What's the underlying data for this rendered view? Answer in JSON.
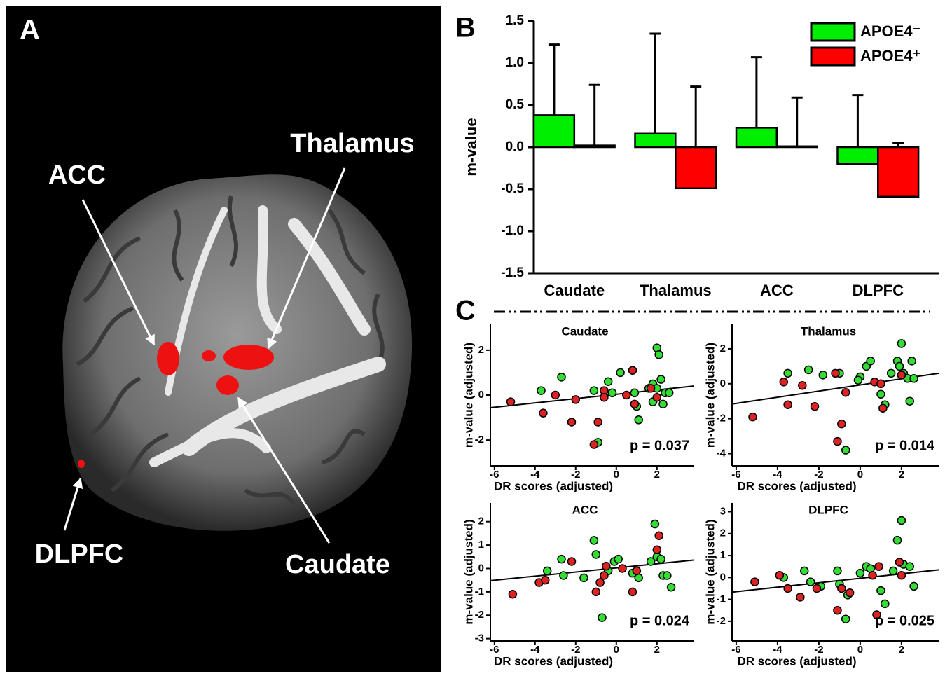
{
  "panels": {
    "a": "A",
    "b": "B",
    "c": "C"
  },
  "brain_labels": [
    "ACC",
    "Thalamus",
    "Caudate",
    "DLPFC"
  ],
  "chart_data": [
    {
      "type": "bar",
      "ylabel": "m-value",
      "categories": [
        "Caudate",
        "Thalamus",
        "ACC",
        "DLPFC"
      ],
      "series": [
        {
          "name": "APOE4⁻",
          "color": "#00ee00",
          "values": [
            0.38,
            0.16,
            0.23,
            -0.2
          ],
          "errors": [
            0.84,
            1.19,
            0.84,
            0.82
          ]
        },
        {
          "name": "APOE4⁺",
          "color": "#ff0000",
          "values": [
            0.02,
            -0.49,
            0.01,
            -0.59
          ],
          "errors": [
            0.72,
            1.21,
            0.58,
            0.64
          ]
        }
      ],
      "ylim": [
        -1.5,
        1.5
      ],
      "yticks": [
        -1.5,
        {
          "value": -1,
          "label": "-1.0"
        },
        -0.5,
        {
          "value": 0,
          "label": "0.0"
        },
        0.5,
        {
          "value": 1,
          "label": "1.0"
        },
        1.5
      ],
      "legend": "top-right"
    },
    {
      "type": "scatter",
      "title": "Caudate",
      "xlabel": "DR scores (adjusted)",
      "ylabel": "m-value (adjusted)",
      "annotation": "p = 0.037",
      "xlim": [
        -6.2,
        3.8
      ],
      "ylim": [
        -3.15,
        3.15
      ],
      "xticks": [
        -6,
        -4,
        -2,
        0,
        2
      ],
      "yticks": [
        -2,
        0,
        2
      ],
      "series": [
        {
          "color": "#33dd33",
          "x": [
            -3.7,
            -2.7,
            -1.1,
            -0.9,
            -0.4,
            0.2,
            1.0,
            1.1,
            1.6,
            1.8,
            2.0,
            2.1,
            2.2,
            2.3,
            2.4,
            2.6,
            0.9,
            -0.2,
            2.0,
            1.8
          ],
          "values": [
            0.2,
            0.8,
            0.2,
            -2.1,
            0.6,
            1.0,
            -0.5,
            -1.1,
            0.3,
            0.5,
            2.1,
            1.8,
            0.7,
            -0.4,
            0.1,
            0.1,
            0.1,
            0.1,
            0.3,
            -0.3
          ]
        },
        {
          "color": "#dd2222",
          "x": [
            -5.2,
            -3.6,
            -3.0,
            -2.2,
            -1.1,
            -0.9,
            -0.6,
            -0.6,
            0.8,
            0.9,
            1.7,
            0.5,
            -2.0,
            2.0
          ],
          "values": [
            -0.3,
            -0.8,
            0.0,
            -1.2,
            -2.2,
            -1.2,
            0.2,
            -0.1,
            1.1,
            -0.4,
            0.3,
            0.0,
            -0.2,
            -0.1
          ]
        }
      ],
      "fit": {
        "x": [
          -6.2,
          3.8
        ],
        "y": [
          -0.56,
          0.4
        ]
      }
    },
    {
      "type": "scatter",
      "title": "Thalamus",
      "xlabel": "DR scores (adjusted)",
      "ylabel": "m-value (adjusted)",
      "annotation": "p = 0.014",
      "xlim": [
        -6.2,
        3.8
      ],
      "ylim": [
        -4.7,
        3.4
      ],
      "xticks": [
        -6,
        -4,
        -2,
        0,
        2
      ],
      "yticks": [
        -4,
        -2,
        0,
        2
      ],
      "series": [
        {
          "color": "#33dd33",
          "x": [
            -3.5,
            -2.5,
            -1.8,
            -1.0,
            -0.7,
            0.0,
            0.3,
            0.5,
            1.0,
            1.2,
            1.8,
            1.9,
            2.0,
            2.1,
            2.3,
            2.5,
            2.4,
            -0.1,
            1.5,
            2.6
          ],
          "values": [
            0.6,
            0.8,
            0.5,
            0.6,
            -3.8,
            0.4,
            1.0,
            1.3,
            -0.6,
            -1.2,
            1.3,
            1.0,
            2.3,
            0.6,
            0.3,
            1.3,
            -1.0,
            0.2,
            0.6,
            0.3
          ]
        },
        {
          "color": "#dd2222",
          "x": [
            -5.2,
            -3.7,
            -3.5,
            -2.8,
            -2.2,
            -1.1,
            -0.9,
            -0.7,
            0.7,
            1.1,
            -1.2,
            1.0,
            2.0
          ],
          "values": [
            -1.9,
            0.1,
            -1.2,
            -0.1,
            -1.3,
            -3.3,
            -2.3,
            -0.5,
            0.1,
            -1.4,
            0.6,
            0.0,
            0.5
          ]
        }
      ],
      "fit": {
        "x": [
          -6.2,
          3.8
        ],
        "y": [
          -1.16,
          0.6
        ]
      }
    },
    {
      "type": "scatter",
      "title": "ACC",
      "xlabel": "DR scores (adjusted)",
      "ylabel": "m-value (adjusted)",
      "annotation": "p = 0.024",
      "xlim": [
        -6.2,
        3.8
      ],
      "ylim": [
        -3.1,
        2.8
      ],
      "xticks": [
        -6,
        -4,
        -2,
        0,
        2
      ],
      "yticks": [
        -3,
        -2,
        -1,
        0,
        1,
        2
      ],
      "series": [
        {
          "color": "#33dd33",
          "x": [
            -3.4,
            -2.7,
            -2.6,
            -1.1,
            -1.0,
            -0.7,
            -0.1,
            0.1,
            0.8,
            1.1,
            1.9,
            2.0,
            2.2,
            2.3,
            2.5,
            2.7,
            -1.6,
            -0.4,
            1.7
          ],
          "values": [
            -0.1,
            0.4,
            -0.3,
            1.2,
            0.6,
            -2.1,
            0.3,
            0.4,
            -0.2,
            -0.4,
            1.9,
            0.5,
            0.4,
            -0.3,
            -0.3,
            -0.8,
            -0.4,
            -0.1,
            0.3
          ]
        },
        {
          "color": "#dd2222",
          "x": [
            -5.1,
            -3.8,
            -3.5,
            -2.2,
            -1.0,
            -0.8,
            -0.5,
            0.8,
            1.0,
            2.1,
            2.0,
            0.3,
            -0.6
          ],
          "values": [
            -1.1,
            -0.6,
            -0.5,
            0.3,
            -1.0,
            -0.6,
            0.1,
            -1.0,
            -0.1,
            1.4,
            0.8,
            0.0,
            -0.3
          ]
        }
      ],
      "fit": {
        "x": [
          -6.2,
          3.8
        ],
        "y": [
          -0.52,
          0.36
        ]
      }
    },
    {
      "type": "scatter",
      "title": "DLPFC",
      "xlabel": "DR scores (adjusted)",
      "ylabel": "m-value (adjusted)",
      "annotation": "p = 0.025",
      "xlim": [
        -6.2,
        3.8
      ],
      "ylim": [
        -2.9,
        3.4
      ],
      "xticks": [
        -6,
        -4,
        -2,
        0,
        2
      ],
      "yticks": [
        -2,
        -1,
        0,
        1,
        2,
        3
      ],
      "series": [
        {
          "color": "#33dd33",
          "x": [
            -3.7,
            -2.7,
            -2.4,
            -1.9,
            -1.1,
            -1.0,
            -0.7,
            0.0,
            0.3,
            0.5,
            1.0,
            1.2,
            1.8,
            2.0,
            2.1,
            2.4,
            2.6,
            1.6,
            -0.6
          ],
          "values": [
            0.0,
            0.3,
            -0.2,
            -0.4,
            0.3,
            -0.3,
            -1.9,
            0.2,
            0.5,
            0.4,
            -0.6,
            -1.2,
            1.7,
            2.6,
            0.6,
            0.5,
            -0.4,
            0.3,
            -0.8
          ]
        },
        {
          "color": "#dd2222",
          "x": [
            -5.1,
            -3.9,
            -3.5,
            -2.9,
            -2.1,
            -1.1,
            -0.9,
            -0.5,
            0.8,
            0.9,
            1.9,
            0.6,
            2.0
          ],
          "values": [
            -0.2,
            0.1,
            -0.5,
            -0.9,
            -0.5,
            -1.5,
            -0.5,
            -0.7,
            -1.7,
            0.5,
            0.7,
            0.1,
            0.1
          ]
        }
      ],
      "fit": {
        "x": [
          -6.2,
          3.8
        ],
        "y": [
          -0.67,
          0.35
        ]
      }
    }
  ]
}
